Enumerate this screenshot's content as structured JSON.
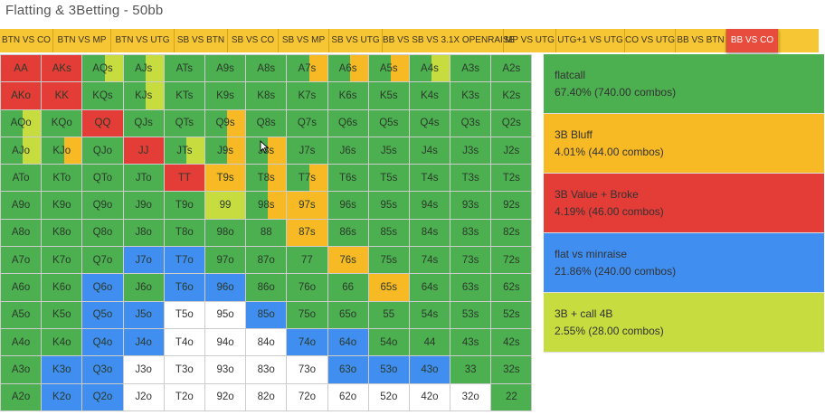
{
  "title": "Flatting & 3Betting - 50bb",
  "colors": {
    "green": "#4caf50",
    "yellow": "#f7b924",
    "red": "#e43c36",
    "blue": "#3f8ef0",
    "lime": "#c6dc3f",
    "white": "#ffffff",
    "tab_bg": "#f7c634",
    "tab_active": "#e74c3c"
  },
  "tabs": [
    {
      "label": "BTN VS CO",
      "active": false
    },
    {
      "label": "BTN VS MP",
      "active": false
    },
    {
      "label": "BTN VS UTG",
      "active": false
    },
    {
      "label": "SB VS BTN",
      "active": false
    },
    {
      "label": "SB VS CO",
      "active": false
    },
    {
      "label": "SB VS MP",
      "active": false
    },
    {
      "label": "SB VS UTG",
      "active": false
    },
    {
      "label": "BB VS SB VS 3.1X OPENRAISE",
      "active": false
    },
    {
      "label": "MP VS UTG",
      "active": false
    },
    {
      "label": "UTG+1 VS UTG",
      "active": false
    },
    {
      "label": "CO VS UTG",
      "active": false
    },
    {
      "label": "BB VS BTN",
      "active": false
    },
    {
      "label": "BB VS CO",
      "active": true
    }
  ],
  "legend": [
    {
      "name": "flatcall",
      "stats": "67.40% (740.00 combos)",
      "color": "#4caf50"
    },
    {
      "name": "3B Bluff",
      "stats": "4.01% (44.00 combos)",
      "color": "#f7b924"
    },
    {
      "name": "3B Value + Broke",
      "stats": "4.19% (46.00 combos)",
      "color": "#e43c36"
    },
    {
      "name": "flat vs minraise",
      "stats": "21.86% (240.00 combos)",
      "color": "#3f8ef0"
    },
    {
      "name": "3B + call 4B",
      "stats": "2.55% (28.00 combos)",
      "color": "#c6dc3f"
    }
  ],
  "matrix": [
    [
      {
        "h": "AA",
        "c": "R"
      },
      {
        "h": "AKs",
        "c": "R"
      },
      {
        "h": "AQs",
        "c": "G",
        "s": "L"
      },
      {
        "h": "AJs",
        "c": "G",
        "s": "L"
      },
      {
        "h": "ATs",
        "c": "G"
      },
      {
        "h": "A9s",
        "c": "G"
      },
      {
        "h": "A8s",
        "c": "G"
      },
      {
        "h": "A7s",
        "c": "G",
        "s": "Y"
      },
      {
        "h": "A6s",
        "c": "G",
        "s": "Y"
      },
      {
        "h": "A5s",
        "c": "G",
        "s": "Y"
      },
      {
        "h": "A4s",
        "c": "G",
        "s": "L"
      },
      {
        "h": "A3s",
        "c": "G"
      },
      {
        "h": "A2s",
        "c": "G"
      }
    ],
    [
      {
        "h": "AKo",
        "c": "R"
      },
      {
        "h": "KK",
        "c": "R"
      },
      {
        "h": "KQs",
        "c": "G"
      },
      {
        "h": "KJs",
        "c": "G",
        "s": "L"
      },
      {
        "h": "KTs",
        "c": "G"
      },
      {
        "h": "K9s",
        "c": "G"
      },
      {
        "h": "K8s",
        "c": "G"
      },
      {
        "h": "K7s",
        "c": "G"
      },
      {
        "h": "K6s",
        "c": "G"
      },
      {
        "h": "K5s",
        "c": "G"
      },
      {
        "h": "K4s",
        "c": "G"
      },
      {
        "h": "K3s",
        "c": "G"
      },
      {
        "h": "K2s",
        "c": "G"
      }
    ],
    [
      {
        "h": "AQo",
        "c": "G",
        "s": "L"
      },
      {
        "h": "KQo",
        "c": "G"
      },
      {
        "h": "QQ",
        "c": "R"
      },
      {
        "h": "QJs",
        "c": "G"
      },
      {
        "h": "QTs",
        "c": "G"
      },
      {
        "h": "Q9s",
        "c": "G",
        "s": "Y"
      },
      {
        "h": "Q8s",
        "c": "G"
      },
      {
        "h": "Q7s",
        "c": "G"
      },
      {
        "h": "Q6s",
        "c": "G"
      },
      {
        "h": "Q5s",
        "c": "G"
      },
      {
        "h": "Q4s",
        "c": "G"
      },
      {
        "h": "Q3s",
        "c": "G"
      },
      {
        "h": "Q2s",
        "c": "G"
      }
    ],
    [
      {
        "h": "AJo",
        "c": "G",
        "s": "L"
      },
      {
        "h": "KJo",
        "c": "G",
        "s": "Y"
      },
      {
        "h": "QJo",
        "c": "G"
      },
      {
        "h": "JJ",
        "c": "R"
      },
      {
        "h": "JTs",
        "c": "G",
        "s": "L"
      },
      {
        "h": "J9s",
        "c": "G",
        "s": "Y"
      },
      {
        "h": "J8s",
        "c": "G",
        "s": "Y"
      },
      {
        "h": "J7s",
        "c": "G"
      },
      {
        "h": "J6s",
        "c": "G"
      },
      {
        "h": "J5s",
        "c": "G"
      },
      {
        "h": "J4s",
        "c": "G"
      },
      {
        "h": "J3s",
        "c": "G"
      },
      {
        "h": "J2s",
        "c": "G"
      }
    ],
    [
      {
        "h": "ATo",
        "c": "G"
      },
      {
        "h": "KTo",
        "c": "G"
      },
      {
        "h": "QTo",
        "c": "G"
      },
      {
        "h": "JTo",
        "c": "G"
      },
      {
        "h": "TT",
        "c": "R"
      },
      {
        "h": "T9s",
        "c": "Y"
      },
      {
        "h": "T8s",
        "c": "G",
        "s": "Y"
      },
      {
        "h": "T7s",
        "c": "G",
        "s": "Y"
      },
      {
        "h": "T6s",
        "c": "G"
      },
      {
        "h": "T5s",
        "c": "G"
      },
      {
        "h": "T4s",
        "c": "G"
      },
      {
        "h": "T3s",
        "c": "G"
      },
      {
        "h": "T2s",
        "c": "G"
      }
    ],
    [
      {
        "h": "A9o",
        "c": "G"
      },
      {
        "h": "K9o",
        "c": "G"
      },
      {
        "h": "Q9o",
        "c": "G"
      },
      {
        "h": "J9o",
        "c": "G"
      },
      {
        "h": "T9o",
        "c": "G"
      },
      {
        "h": "99",
        "c": "L"
      },
      {
        "h": "98s",
        "c": "G",
        "s": "Y"
      },
      {
        "h": "97s",
        "c": "Y"
      },
      {
        "h": "96s",
        "c": "G"
      },
      {
        "h": "95s",
        "c": "G"
      },
      {
        "h": "94s",
        "c": "G"
      },
      {
        "h": "93s",
        "c": "G"
      },
      {
        "h": "92s",
        "c": "G"
      }
    ],
    [
      {
        "h": "A8o",
        "c": "G"
      },
      {
        "h": "K8o",
        "c": "G"
      },
      {
        "h": "Q8o",
        "c": "G"
      },
      {
        "h": "J8o",
        "c": "G"
      },
      {
        "h": "T8o",
        "c": "G"
      },
      {
        "h": "98o",
        "c": "G"
      },
      {
        "h": "88",
        "c": "G"
      },
      {
        "h": "87s",
        "c": "Y"
      },
      {
        "h": "86s",
        "c": "G"
      },
      {
        "h": "85s",
        "c": "G"
      },
      {
        "h": "84s",
        "c": "G"
      },
      {
        "h": "83s",
        "c": "G"
      },
      {
        "h": "82s",
        "c": "G"
      }
    ],
    [
      {
        "h": "A7o",
        "c": "G"
      },
      {
        "h": "K7o",
        "c": "G"
      },
      {
        "h": "Q7o",
        "c": "G"
      },
      {
        "h": "J7o",
        "c": "B"
      },
      {
        "h": "T7o",
        "c": "B"
      },
      {
        "h": "97o",
        "c": "G"
      },
      {
        "h": "87o",
        "c": "G"
      },
      {
        "h": "77",
        "c": "G"
      },
      {
        "h": "76s",
        "c": "Y"
      },
      {
        "h": "75s",
        "c": "G"
      },
      {
        "h": "74s",
        "c": "G"
      },
      {
        "h": "73s",
        "c": "G"
      },
      {
        "h": "72s",
        "c": "G"
      }
    ],
    [
      {
        "h": "A6o",
        "c": "G"
      },
      {
        "h": "K6o",
        "c": "G"
      },
      {
        "h": "Q6o",
        "c": "B"
      },
      {
        "h": "J6o",
        "c": "G"
      },
      {
        "h": "T6o",
        "c": "B"
      },
      {
        "h": "96o",
        "c": "B"
      },
      {
        "h": "86o",
        "c": "G"
      },
      {
        "h": "76o",
        "c": "G"
      },
      {
        "h": "66",
        "c": "G"
      },
      {
        "h": "65s",
        "c": "Y"
      },
      {
        "h": "64s",
        "c": "G"
      },
      {
        "h": "63s",
        "c": "G"
      },
      {
        "h": "62s",
        "c": "G"
      }
    ],
    [
      {
        "h": "A5o",
        "c": "G"
      },
      {
        "h": "K5o",
        "c": "G"
      },
      {
        "h": "Q5o",
        "c": "B"
      },
      {
        "h": "J5o",
        "c": "B"
      },
      {
        "h": "T5o",
        "c": "W"
      },
      {
        "h": "95o",
        "c": "W"
      },
      {
        "h": "85o",
        "c": "B"
      },
      {
        "h": "75o",
        "c": "G"
      },
      {
        "h": "65o",
        "c": "G"
      },
      {
        "h": "55",
        "c": "G"
      },
      {
        "h": "54s",
        "c": "G"
      },
      {
        "h": "53s",
        "c": "G"
      },
      {
        "h": "52s",
        "c": "G"
      }
    ],
    [
      {
        "h": "A4o",
        "c": "G"
      },
      {
        "h": "K4o",
        "c": "G"
      },
      {
        "h": "Q4o",
        "c": "B"
      },
      {
        "h": "J4o",
        "c": "B"
      },
      {
        "h": "T4o",
        "c": "W"
      },
      {
        "h": "94o",
        "c": "W"
      },
      {
        "h": "84o",
        "c": "W"
      },
      {
        "h": "74o",
        "c": "B"
      },
      {
        "h": "64o",
        "c": "B"
      },
      {
        "h": "54o",
        "c": "G"
      },
      {
        "h": "44",
        "c": "G"
      },
      {
        "h": "43s",
        "c": "G"
      },
      {
        "h": "42s",
        "c": "G"
      }
    ],
    [
      {
        "h": "A3o",
        "c": "G"
      },
      {
        "h": "K3o",
        "c": "B"
      },
      {
        "h": "Q3o",
        "c": "B"
      },
      {
        "h": "J3o",
        "c": "W"
      },
      {
        "h": "T3o",
        "c": "W"
      },
      {
        "h": "93o",
        "c": "W"
      },
      {
        "h": "83o",
        "c": "W"
      },
      {
        "h": "73o",
        "c": "W"
      },
      {
        "h": "63o",
        "c": "B"
      },
      {
        "h": "53o",
        "c": "B"
      },
      {
        "h": "43o",
        "c": "B"
      },
      {
        "h": "33",
        "c": "G"
      },
      {
        "h": "32s",
        "c": "G"
      }
    ],
    [
      {
        "h": "A2o",
        "c": "G"
      },
      {
        "h": "K2o",
        "c": "B"
      },
      {
        "h": "Q2o",
        "c": "B"
      },
      {
        "h": "J2o",
        "c": "W"
      },
      {
        "h": "T2o",
        "c": "W"
      },
      {
        "h": "92o",
        "c": "W"
      },
      {
        "h": "82o",
        "c": "W"
      },
      {
        "h": "72o",
        "c": "W"
      },
      {
        "h": "62o",
        "c": "W"
      },
      {
        "h": "52o",
        "c": "W"
      },
      {
        "h": "42o",
        "c": "W"
      },
      {
        "h": "32o",
        "c": "W"
      },
      {
        "h": "22",
        "c": "G"
      }
    ]
  ]
}
